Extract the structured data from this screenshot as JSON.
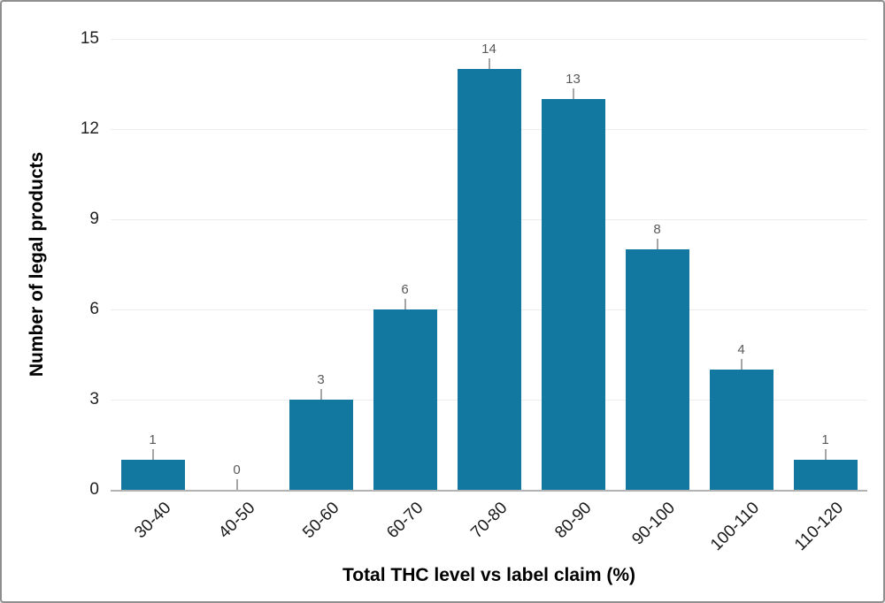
{
  "chart_data": {
    "type": "bar",
    "title": "",
    "categories": [
      "30-40",
      "40-50",
      "50-60",
      "60-70",
      "70-80",
      "80-90",
      "90-100",
      "100-110",
      "110-120"
    ],
    "values": [
      1,
      0,
      3,
      6,
      14,
      13,
      8,
      4,
      1
    ],
    "data_labels": [
      "1",
      "0",
      "3",
      "6",
      "14",
      "13",
      "8",
      "4",
      "1"
    ],
    "xlabel": "Total THC level vs label claim (%)",
    "ylabel": "Number of legal products",
    "ylim": [
      0,
      15
    ],
    "yticks": [
      0,
      3,
      6,
      9,
      12,
      15
    ],
    "legend": "none",
    "grid": "horizontal",
    "colors": {
      "bar": "#1278A0",
      "gridline": "#ededed",
      "axis_line": "#b3b3b3",
      "leader_line": "#a6a6a6",
      "data_label": "#595959",
      "tick_label": "#1f1f1f",
      "axis_title": "#000000"
    }
  }
}
